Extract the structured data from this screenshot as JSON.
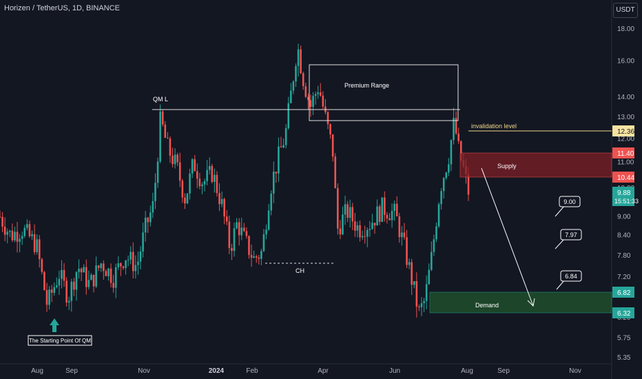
{
  "header": {
    "title": "Horizen / TetherUS, 1D, BINANCE",
    "currency": "USDT"
  },
  "colors": {
    "up": "#26a69a",
    "down": "#ef5350",
    "background": "#131722",
    "supply": "#7d1f25",
    "demand": "#1f4d2a",
    "invalidation": "#f0d78a"
  },
  "chart_data": {
    "type": "candlestick",
    "title": "Horizen / TetherUS, 1D, BINANCE",
    "y_scale": "log",
    "ylim": [
      5.2,
      19.5
    ],
    "y_ticks": [
      "18.00",
      "16.00",
      "14.00",
      "13.00",
      "12.00",
      "11.00",
      "10.00",
      "9.00",
      "8.40",
      "7.80",
      "7.20",
      "6.80",
      "6.20",
      "5.75",
      "5.35"
    ],
    "x_ticks": [
      {
        "label": "Aug",
        "bold": false
      },
      {
        "label": "Sep",
        "bold": false
      },
      {
        "label": "Nov",
        "bold": false
      },
      {
        "label": "2024",
        "bold": true
      },
      {
        "label": "Feb",
        "bold": false
      },
      {
        "label": "Apr",
        "bold": false
      },
      {
        "label": "Jun",
        "bold": false
      },
      {
        "label": "Aug",
        "bold": false
      },
      {
        "label": "Sep",
        "bold": false
      },
      {
        "label": "Nov",
        "bold": false
      }
    ],
    "price_path": [
      [
        "2023-07-01",
        9.0
      ],
      [
        "2023-07-10",
        8.4
      ],
      [
        "2023-07-20",
        8.6
      ],
      [
        "2023-08-01",
        8.1
      ],
      [
        "2023-08-10",
        6.5
      ],
      [
        "2023-08-20",
        7.3
      ],
      [
        "2023-08-28",
        6.7
      ],
      [
        "2023-09-05",
        7.5
      ],
      [
        "2023-09-15",
        7.0
      ],
      [
        "2023-09-25",
        7.6
      ],
      [
        "2023-10-05",
        7.2
      ],
      [
        "2023-10-15",
        7.8
      ],
      [
        "2023-10-25",
        7.5
      ],
      [
        "2023-11-01",
        8.6
      ],
      [
        "2023-11-08",
        9.4
      ],
      [
        "2023-11-14",
        12.9
      ],
      [
        "2023-11-20",
        11.6
      ],
      [
        "2023-11-28",
        10.8
      ],
      [
        "2023-12-05",
        9.6
      ],
      [
        "2023-12-12",
        11.0
      ],
      [
        "2023-12-20",
        10.2
      ],
      [
        "2023-12-28",
        10.6
      ],
      [
        "2024-01-05",
        9.4
      ],
      [
        "2024-01-12",
        8.0
      ],
      [
        "2024-01-18",
        8.8
      ],
      [
        "2024-01-25",
        8.2
      ],
      [
        "2024-02-01",
        7.7
      ],
      [
        "2024-02-08",
        7.9
      ],
      [
        "2024-02-15",
        10.0
      ],
      [
        "2024-02-22",
        11.2
      ],
      [
        "2024-02-28",
        12.2
      ],
      [
        "2024-03-05",
        14.8
      ],
      [
        "2024-03-09",
        17.0
      ],
      [
        "2024-03-14",
        15.0
      ],
      [
        "2024-03-20",
        13.5
      ],
      [
        "2024-03-27",
        14.6
      ],
      [
        "2024-04-02",
        12.9
      ],
      [
        "2024-04-08",
        11.5
      ],
      [
        "2024-04-12",
        8.6
      ],
      [
        "2024-04-20",
        9.2
      ],
      [
        "2024-04-30",
        8.6
      ],
      [
        "2024-05-10",
        8.8
      ],
      [
        "2024-05-20",
        9.3
      ],
      [
        "2024-05-31",
        9.1
      ],
      [
        "2024-06-08",
        8.0
      ],
      [
        "2024-06-15",
        7.0
      ],
      [
        "2024-06-20",
        6.3
      ],
      [
        "2024-06-25",
        6.6
      ],
      [
        "2024-07-01",
        7.8
      ],
      [
        "2024-07-08",
        10.0
      ],
      [
        "2024-07-15",
        11.2
      ],
      [
        "2024-07-20",
        12.8
      ],
      [
        "2024-07-24",
        11.4
      ],
      [
        "2024-07-28",
        10.7
      ],
      [
        "2024-08-01",
        9.88
      ]
    ],
    "levels": [
      {
        "name": "invalidation level",
        "value": 12.36
      },
      {
        "name": "supply_top",
        "value": 11.4
      },
      {
        "name": "supply_bottom",
        "value": 10.44
      },
      {
        "name": "demand_top",
        "value": 6.82
      },
      {
        "name": "demand_bottom",
        "value": 6.32
      },
      {
        "name": "current",
        "value": 9.88
      }
    ],
    "targets": [
      9.0,
      7.97,
      6.84
    ]
  },
  "price_badges": [
    {
      "id": "invalidation",
      "value": "12.36",
      "bg": "#f7e4a1",
      "fg": "#131722"
    },
    {
      "id": "supply-top",
      "value": "11.40",
      "bg": "#ef5350",
      "fg": "#ffffff"
    },
    {
      "id": "supply-bottom",
      "value": "10.44",
      "bg": "#ef5350",
      "fg": "#ffffff"
    },
    {
      "id": "current",
      "value": "9.88",
      "bg": "#26a69a",
      "fg": "#ffffff"
    },
    {
      "id": "demand-top",
      "value": "6.82",
      "bg": "#26a69a",
      "fg": "#ffffff"
    },
    {
      "id": "demand-bottom",
      "value": "6.32",
      "bg": "#26a69a",
      "fg": "#ffffff"
    }
  ],
  "countdown": "15:51:33",
  "annotations": {
    "qml": "QM L",
    "premium": "Premium Range",
    "ch": "CH",
    "invalidation": "invalidation level",
    "supply": "Supply",
    "demand": "Demand",
    "start": "The Starting Point Of QM",
    "target1": "9.00",
    "target2": "7.97",
    "target3": "6.84"
  }
}
